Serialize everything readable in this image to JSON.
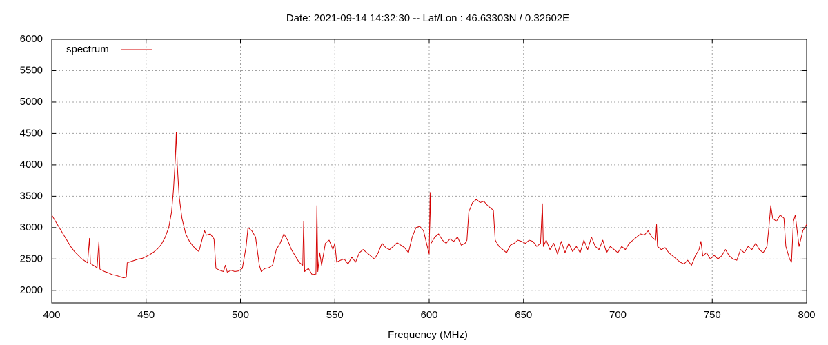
{
  "chart_data": {
    "type": "line",
    "title": "Date: 2021-09-14 14:32:30  --  Lat/Lon : 46.63303N / 0.32602E",
    "x_label": "Frequency (MHz)",
    "xlim": [
      400,
      800
    ],
    "xticks": [
      400,
      450,
      500,
      550,
      600,
      650,
      700,
      750,
      800
    ],
    "ylim": [
      1800,
      6000
    ],
    "yticks": [
      2000,
      2500,
      3000,
      3500,
      4000,
      4500,
      5000,
      5500,
      6000
    ],
    "grid": true,
    "legend": "top-left",
    "x": [
      400,
      402,
      404,
      406,
      408,
      410,
      412,
      414,
      416,
      418,
      419,
      420,
      420.5,
      422,
      424,
      425,
      425.5,
      428,
      430,
      432,
      434,
      436,
      438,
      439.5,
      440,
      442,
      444,
      446,
      448,
      450,
      452,
      454,
      456,
      458,
      460,
      462,
      463.5,
      464.5,
      465.5,
      466,
      466.5,
      467.5,
      469,
      471,
      473,
      475,
      477,
      478,
      480,
      481,
      482,
      484,
      486,
      487,
      489,
      491,
      492,
      493,
      495,
      497,
      499,
      501,
      503,
      504,
      506,
      508,
      510,
      511,
      513,
      515,
      517,
      519,
      521,
      523,
      525,
      527,
      529,
      531,
      533,
      533.5,
      534,
      536,
      538,
      540,
      540.5,
      541,
      542,
      543,
      545,
      547,
      549,
      550,
      551,
      553,
      555,
      557,
      559,
      561,
      563,
      565,
      567,
      569,
      571,
      573,
      575,
      577,
      579,
      581,
      583,
      585,
      587,
      589,
      591,
      593,
      595,
      597,
      599,
      600,
      600.5,
      601,
      603,
      605,
      607,
      609,
      611,
      613,
      615,
      617,
      619,
      620,
      621,
      623,
      625,
      627,
      629,
      631,
      633,
      634,
      635,
      637,
      639,
      641,
      643,
      645,
      647,
      649,
      651,
      653,
      655,
      657,
      659,
      660,
      660.5,
      662,
      664,
      666,
      668,
      670,
      672,
      674,
      676,
      678,
      680,
      682,
      684,
      686,
      688,
      690,
      692,
      694,
      696,
      698,
      700,
      702,
      704,
      706,
      708,
      710,
      712,
      714,
      716,
      718,
      720,
      720.5,
      721,
      723,
      725,
      727,
      729,
      731,
      733,
      735,
      737,
      739,
      741,
      743,
      744,
      745,
      747,
      749,
      751,
      753,
      755,
      757,
      759,
      761,
      763,
      765,
      767,
      769,
      771,
      773,
      775,
      777,
      779,
      780,
      781,
      782,
      784,
      786,
      788,
      789,
      791,
      792,
      793,
      794,
      796,
      798,
      800
    ],
    "series": [
      {
        "name": "spectrum",
        "color": "#d40000",
        "values": [
          3200,
          3100,
          3000,
          2900,
          2800,
          2700,
          2620,
          2560,
          2500,
          2460,
          2440,
          2830,
          2430,
          2400,
          2360,
          2780,
          2340,
          2300,
          2280,
          2250,
          2240,
          2220,
          2200,
          2210,
          2440,
          2460,
          2480,
          2500,
          2510,
          2540,
          2570,
          2610,
          2660,
          2730,
          2840,
          3000,
          3250,
          3600,
          4100,
          4520,
          4000,
          3500,
          3150,
          2900,
          2780,
          2700,
          2640,
          2620,
          2850,
          2950,
          2880,
          2900,
          2820,
          2350,
          2320,
          2300,
          2400,
          2290,
          2320,
          2300,
          2310,
          2350,
          2700,
          3000,
          2950,
          2850,
          2400,
          2300,
          2350,
          2360,
          2400,
          2650,
          2750,
          2900,
          2800,
          2650,
          2550,
          2450,
          2400,
          3100,
          2300,
          2350,
          2250,
          2260,
          3350,
          2300,
          2600,
          2400,
          2750,
          2800,
          2650,
          2750,
          2450,
          2480,
          2500,
          2420,
          2530,
          2450,
          2600,
          2650,
          2600,
          2550,
          2500,
          2600,
          2750,
          2680,
          2650,
          2700,
          2760,
          2720,
          2680,
          2600,
          2850,
          3000,
          3020,
          2950,
          2700,
          2580,
          3560,
          2750,
          2850,
          2900,
          2800,
          2750,
          2820,
          2780,
          2850,
          2720,
          2750,
          2800,
          3250,
          3400,
          3450,
          3400,
          3420,
          3350,
          3300,
          3280,
          2800,
          2700,
          2650,
          2600,
          2720,
          2750,
          2800,
          2780,
          2750,
          2800,
          2780,
          2700,
          2750,
          3380,
          2700,
          2800,
          2650,
          2750,
          2580,
          2780,
          2600,
          2750,
          2620,
          2700,
          2600,
          2800,
          2650,
          2850,
          2700,
          2650,
          2800,
          2600,
          2700,
          2650,
          2600,
          2700,
          2650,
          2750,
          2800,
          2850,
          2900,
          2880,
          2950,
          2850,
          2800,
          3050,
          2700,
          2650,
          2680,
          2600,
          2550,
          2500,
          2450,
          2420,
          2480,
          2400,
          2550,
          2650,
          2780,
          2550,
          2600,
          2500,
          2560,
          2500,
          2550,
          2650,
          2550,
          2500,
          2480,
          2650,
          2600,
          2700,
          2650,
          2750,
          2650,
          2600,
          2700,
          3000,
          3350,
          3150,
          3100,
          3200,
          3150,
          2700,
          2500,
          2450,
          3100,
          3200,
          2700,
          2950,
          3050
        ]
      }
    ]
  }
}
